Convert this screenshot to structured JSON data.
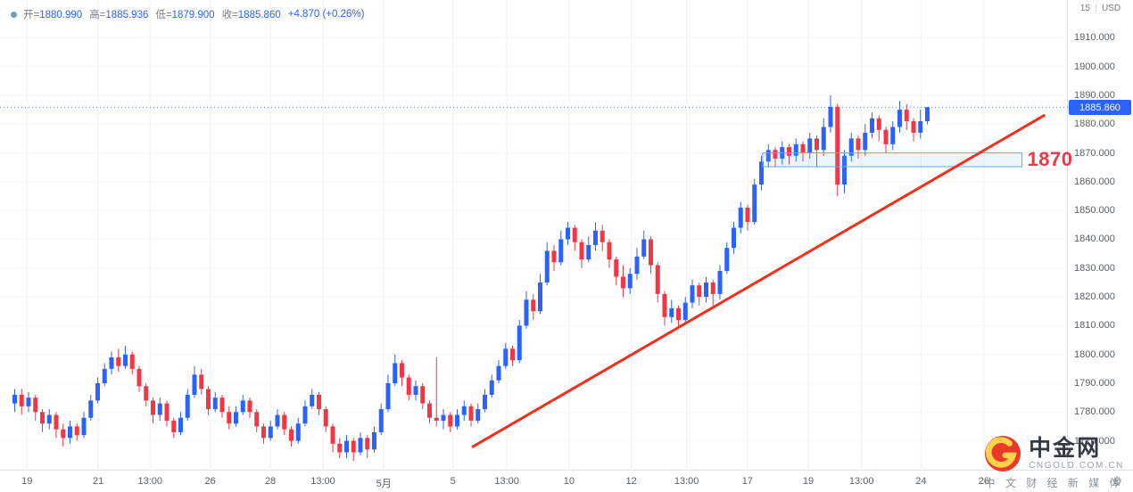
{
  "legend": {
    "marker_color": "#6f9bd1",
    "open_label": "开=",
    "open_value": "1880.990",
    "high_label": "高=",
    "high_value": "1885.936",
    "low_label": "低=",
    "low_value": "1879.900",
    "close_label": "收=",
    "close_value": "1885.860",
    "change": "+4.870 (+0.26%)"
  },
  "toolbar_right": {
    "interval": "15",
    "currency": "USD"
  },
  "colors": {
    "up": "#2962ff",
    "down": "#f23645",
    "trend": "#f4301d",
    "zone_stroke": "#63b1ec",
    "zone_fill": "rgba(99,177,236,0.13)",
    "badge": "#2962ff",
    "label_red": "#f23645",
    "grid_v": "#eef1f6",
    "grid_h": "#f6f8fb"
  },
  "chart_data": {
    "type": "candlestick",
    "last_price": 1885.86,
    "last_price_label": "1885.860",
    "y_axis": {
      "decimals": 3,
      "ticks": [
        1910,
        1900,
        1890,
        1880,
        1870,
        1860,
        1850,
        1840,
        1830,
        1820,
        1810,
        1800,
        1790,
        1780,
        1770
      ],
      "ylim": [
        1760.6,
        1920
      ]
    },
    "x_axis": {
      "ticks": [
        {
          "label": "19",
          "i": 2.1
        },
        {
          "label": "21",
          "i": 12.4
        },
        {
          "label": "13:00",
          "i": 19.9
        },
        {
          "label": "26",
          "i": 28.6
        },
        {
          "label": "28",
          "i": 37.3
        },
        {
          "label": "13:00",
          "i": 44.9
        },
        {
          "label": "5月",
          "i": 53.7
        },
        {
          "label": "5",
          "i": 63.7
        },
        {
          "label": "13:00",
          "i": 71.5
        },
        {
          "label": "10",
          "i": 80.5
        },
        {
          "label": "12",
          "i": 89.5
        },
        {
          "label": "13:00",
          "i": 97.5
        },
        {
          "label": "17",
          "i": 106.3
        },
        {
          "label": "19",
          "i": 115.1
        },
        {
          "label": "13:00",
          "i": 122.8
        },
        {
          "label": "24",
          "i": 131.4
        },
        {
          "label": "26",
          "i": 140.5
        }
      ]
    },
    "candles": [
      [
        1783,
        1788,
        1780,
        1786
      ],
      [
        1786,
        1788,
        1779,
        1782
      ],
      [
        1782,
        1787,
        1780,
        1785
      ],
      [
        1785,
        1786,
        1777,
        1780
      ],
      [
        1780,
        1781,
        1773,
        1776
      ],
      [
        1776,
        1781,
        1774,
        1779
      ],
      [
        1779,
        1780,
        1771,
        1774
      ],
      [
        1774,
        1776,
        1768,
        1771
      ],
      [
        1771,
        1777,
        1769,
        1775
      ],
      [
        1775,
        1776,
        1770,
        1772
      ],
      [
        1772,
        1780,
        1771,
        1778
      ],
      [
        1778,
        1786,
        1777,
        1784
      ],
      [
        1784,
        1792,
        1783,
        1790
      ],
      [
        1790,
        1797,
        1789,
        1795
      ],
      [
        1795,
        1801,
        1793,
        1799
      ],
      [
        1799,
        1802,
        1794,
        1796
      ],
      [
        1796,
        1803,
        1795,
        1800
      ],
      [
        1800,
        1801,
        1793,
        1795
      ],
      [
        1795,
        1796,
        1787,
        1789
      ],
      [
        1789,
        1790,
        1782,
        1784
      ],
      [
        1784,
        1785,
        1776,
        1779
      ],
      [
        1779,
        1785,
        1777,
        1783
      ],
      [
        1783,
        1784,
        1775,
        1777
      ],
      [
        1777,
        1778,
        1771,
        1773
      ],
      [
        1773,
        1780,
        1772,
        1778
      ],
      [
        1778,
        1788,
        1777,
        1786
      ],
      [
        1786,
        1796,
        1785,
        1793
      ],
      [
        1793,
        1795,
        1786,
        1788
      ],
      [
        1788,
        1789,
        1779,
        1781
      ],
      [
        1781,
        1787,
        1780,
        1785
      ],
      [
        1785,
        1786,
        1778,
        1780
      ],
      [
        1780,
        1782,
        1774,
        1776
      ],
      [
        1776,
        1782,
        1775,
        1780
      ],
      [
        1780,
        1786,
        1779,
        1784
      ],
      [
        1784,
        1785,
        1778,
        1780
      ],
      [
        1780,
        1781,
        1773,
        1775
      ],
      [
        1775,
        1776,
        1769,
        1771
      ],
      [
        1771,
        1777,
        1770,
        1775
      ],
      [
        1775,
        1781,
        1774,
        1779
      ],
      [
        1779,
        1780,
        1772,
        1774
      ],
      [
        1774,
        1775,
        1768,
        1770
      ],
      [
        1770,
        1778,
        1769,
        1776
      ],
      [
        1776,
        1784,
        1775,
        1782
      ],
      [
        1782,
        1788,
        1781,
        1786
      ],
      [
        1786,
        1787,
        1779,
        1781
      ],
      [
        1781,
        1782,
        1773,
        1775
      ],
      [
        1775,
        1776,
        1766,
        1769
      ],
      [
        1769,
        1771,
        1764,
        1766
      ],
      [
        1766,
        1772,
        1764,
        1770
      ],
      [
        1770,
        1771,
        1763,
        1766
      ],
      [
        1766,
        1773,
        1765,
        1771
      ],
      [
        1771,
        1772,
        1764,
        1767
      ],
      [
        1767,
        1775,
        1766,
        1773
      ],
      [
        1773,
        1783,
        1772,
        1781
      ],
      [
        1781,
        1793,
        1780,
        1790
      ],
      [
        1790,
        1800,
        1789,
        1797
      ],
      [
        1797,
        1798,
        1789,
        1792
      ],
      [
        1792,
        1793,
        1784,
        1786
      ],
      [
        1786,
        1791,
        1784,
        1789
      ],
      [
        1789,
        1790,
        1781,
        1783
      ],
      [
        1783,
        1784,
        1776,
        1778
      ],
      [
        1778,
        1799,
        1775,
        1777
      ],
      [
        1777,
        1781,
        1774,
        1779
      ],
      [
        1779,
        1780,
        1773,
        1775
      ],
      [
        1775,
        1781,
        1774,
        1779
      ],
      [
        1779,
        1784,
        1777,
        1782
      ],
      [
        1782,
        1783,
        1775,
        1777
      ],
      [
        1777,
        1783,
        1776,
        1781
      ],
      [
        1781,
        1788,
        1780,
        1786
      ],
      [
        1786,
        1793,
        1785,
        1791
      ],
      [
        1791,
        1798,
        1790,
        1796
      ],
      [
        1796,
        1804,
        1795,
        1802
      ],
      [
        1802,
        1803,
        1796,
        1798
      ],
      [
        1798,
        1812,
        1797,
        1810
      ],
      [
        1810,
        1822,
        1809,
        1819
      ],
      [
        1819,
        1821,
        1812,
        1815
      ],
      [
        1815,
        1828,
        1814,
        1825
      ],
      [
        1825,
        1839,
        1824,
        1836
      ],
      [
        1836,
        1838,
        1829,
        1832
      ],
      [
        1832,
        1843,
        1831,
        1840
      ],
      [
        1840,
        1846,
        1838,
        1844
      ],
      [
        1844,
        1845,
        1836,
        1839
      ],
      [
        1839,
        1840,
        1830,
        1833
      ],
      [
        1833,
        1841,
        1832,
        1838
      ],
      [
        1838,
        1846,
        1836,
        1843
      ],
      [
        1843,
        1845,
        1836,
        1839
      ],
      [
        1839,
        1840,
        1830,
        1833
      ],
      [
        1833,
        1834,
        1824,
        1827
      ],
      [
        1827,
        1831,
        1820,
        1823
      ],
      [
        1823,
        1830,
        1821,
        1828
      ],
      [
        1828,
        1837,
        1826,
        1834
      ],
      [
        1834,
        1843,
        1833,
        1840
      ],
      [
        1840,
        1841,
        1828,
        1831
      ],
      [
        1831,
        1832,
        1818,
        1821
      ],
      [
        1821,
        1822,
        1810,
        1813
      ],
      [
        1813,
        1819,
        1811,
        1816
      ],
      [
        1816,
        1817,
        1809,
        1812
      ],
      [
        1812,
        1820,
        1811,
        1818
      ],
      [
        1818,
        1826,
        1816,
        1824
      ],
      [
        1824,
        1825,
        1817,
        1820
      ],
      [
        1820,
        1827,
        1818,
        1825
      ],
      [
        1825,
        1826,
        1817,
        1821
      ],
      [
        1821,
        1831,
        1819,
        1829
      ],
      [
        1829,
        1839,
        1828,
        1837
      ],
      [
        1837,
        1846,
        1835,
        1844
      ],
      [
        1844,
        1853,
        1842,
        1851
      ],
      [
        1851,
        1852,
        1843,
        1846
      ],
      [
        1846,
        1861,
        1845,
        1859
      ],
      [
        1859,
        1869,
        1857,
        1867
      ],
      [
        1867,
        1873,
        1865,
        1871
      ],
      [
        1871,
        1872,
        1865,
        1868
      ],
      [
        1868,
        1874,
        1866,
        1872
      ],
      [
        1872,
        1873,
        1866,
        1869
      ],
      [
        1869,
        1875,
        1867,
        1873
      ],
      [
        1873,
        1874,
        1867,
        1870
      ],
      [
        1870,
        1877,
        1868,
        1875
      ],
      [
        1875,
        1876,
        1865,
        1871
      ],
      [
        1871,
        1882,
        1869,
        1879
      ],
      [
        1879,
        1890,
        1877,
        1886
      ],
      [
        1886,
        1887,
        1855,
        1859
      ],
      [
        1859,
        1871,
        1856,
        1869
      ],
      [
        1869,
        1877,
        1867,
        1875
      ],
      [
        1875,
        1876,
        1868,
        1871
      ],
      [
        1871,
        1880,
        1869,
        1877
      ],
      [
        1877,
        1884,
        1875,
        1882
      ],
      [
        1882,
        1883,
        1874,
        1878
      ],
      [
        1878,
        1879,
        1870,
        1873
      ],
      [
        1873,
        1881,
        1871,
        1879
      ],
      [
        1879,
        1888,
        1877,
        1885
      ],
      [
        1885,
        1887,
        1878,
        1881
      ],
      [
        1881,
        1882,
        1874,
        1877
      ],
      [
        1877,
        1885,
        1875,
        1881
      ],
      [
        1880.99,
        1885.94,
        1879.9,
        1885.86
      ]
    ],
    "annotations": {
      "trend_line": {
        "from_i": 66.6,
        "from_price": 1768,
        "to_i": 149.2,
        "to_price": 1883
      },
      "zone": {
        "from_i": 108.5,
        "to_i": 146,
        "price_top": 1870,
        "price_bottom": 1865.2
      },
      "zone_label": "1870"
    }
  },
  "watermark": {
    "title": "中金网",
    "domain": "CNGOLD.COM.CN",
    "tagline": "中 文 财 经 新 媒 体"
  }
}
